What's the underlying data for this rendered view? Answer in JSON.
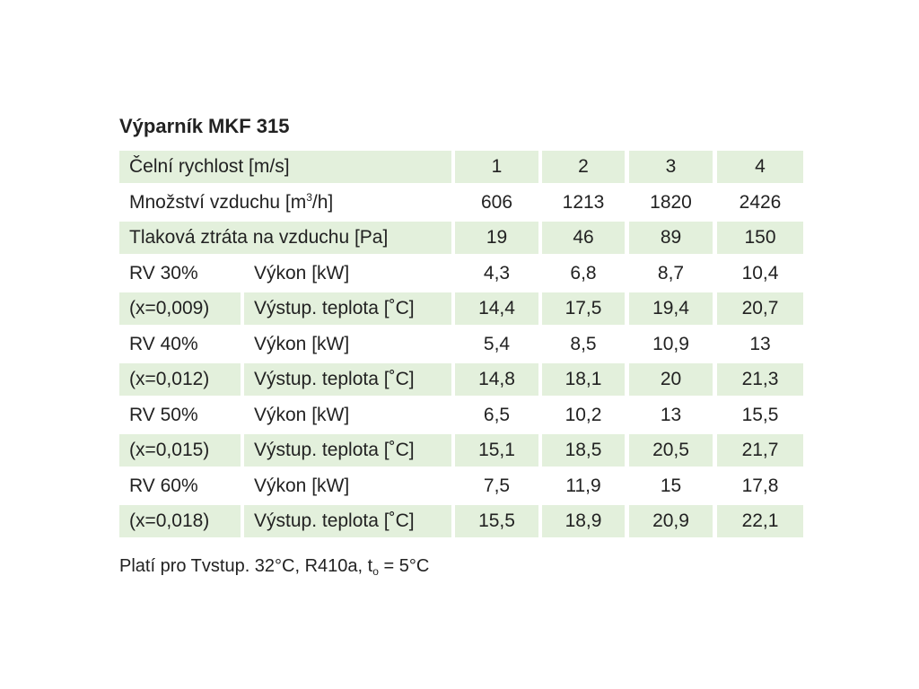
{
  "title": "Výparník MKF 315",
  "table": {
    "rows": [
      {
        "label": "Čelní rychlost [m/s]",
        "values": [
          "1",
          "2",
          "3",
          "4"
        ]
      },
      {
        "label_parts": [
          "Množství vzduchu [m",
          "3",
          "/h]"
        ],
        "values": [
          "606",
          "1213",
          "1820",
          "2426"
        ]
      },
      {
        "label": "Tlaková ztráta na vzduchu [Pa]",
        "values": [
          "19",
          "46",
          "89",
          "150"
        ]
      },
      {
        "group": "RV 30%",
        "label": "Výkon [kW]",
        "values": [
          "4,3",
          "6,8",
          "8,7",
          "10,4"
        ]
      },
      {
        "group": "(x=0,009)",
        "label": "Výstup. teplota [˚C]",
        "values": [
          "14,4",
          "17,5",
          "19,4",
          "20,7"
        ]
      },
      {
        "group": "RV 40%",
        "label": "Výkon [kW]",
        "values": [
          "5,4",
          "8,5",
          "10,9",
          "13"
        ]
      },
      {
        "group": "(x=0,012)",
        "label": "Výstup. teplota [˚C]",
        "values": [
          "14,8",
          "18,1",
          "20",
          "21,3"
        ]
      },
      {
        "group": "RV 50%",
        "label": "Výkon [kW]",
        "values": [
          "6,5",
          "10,2",
          "13",
          "15,5"
        ]
      },
      {
        "group": "(x=0,015)",
        "label": "Výstup. teplota [˚C]",
        "values": [
          "15,1",
          "18,5",
          "20,5",
          "21,7"
        ]
      },
      {
        "group": "RV 60%",
        "label": "Výkon [kW]",
        "values": [
          "7,5",
          "11,9",
          "15",
          "17,8"
        ]
      },
      {
        "group": "(x=0,018)",
        "label": "Výstup. teplota [˚C]",
        "values": [
          "15,5",
          "18,9",
          "20,9",
          "22,1"
        ]
      }
    ]
  },
  "footnote_parts": [
    "Platí pro Tvstup. 32°C, R410a, t",
    "o",
    " = 5°C"
  ]
}
